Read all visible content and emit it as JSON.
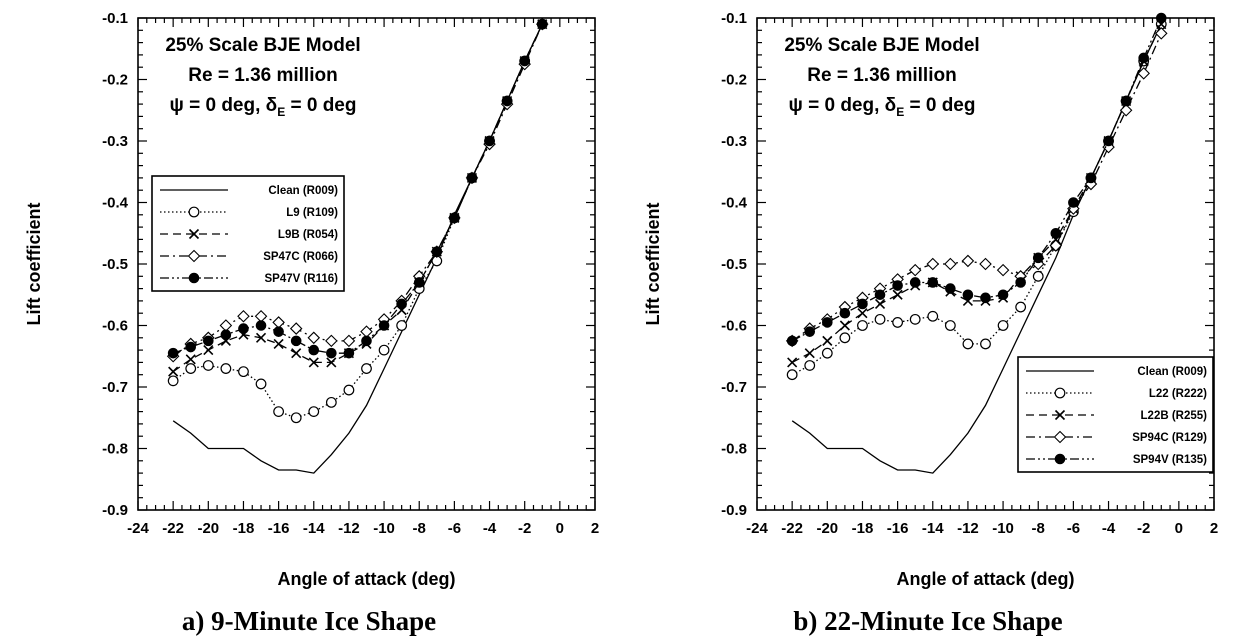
{
  "figure": {
    "panels": [
      {
        "caption": "a)  9-Minute Ice Shape",
        "annotation": [
          "25% Scale BJE Model",
          "Re = 1.36 million",
          "ψ = 0 deg, δE = 0 deg"
        ],
        "legend": {
          "position": "middle-left"
        }
      },
      {
        "caption": "b)  22-Minute Ice Shape",
        "annotation": [
          "25% Scale BJE Model",
          "Re = 1.36 million",
          "ψ = 0 deg, δE = 0 deg"
        ],
        "legend": {
          "position": "bottom-right"
        }
      }
    ]
  },
  "colors": {
    "ink": "#000000",
    "background": "#ffffff"
  },
  "chart_data": [
    {
      "type": "line",
      "title": "",
      "xlabel": "Angle of attack (deg)",
      "ylabel": "Lift coefficient",
      "xlim": [
        -24,
        2
      ],
      "ylim": [
        -0.9,
        -0.1
      ],
      "xticks": [
        -24,
        -22,
        -20,
        -18,
        -16,
        -14,
        -12,
        -10,
        -8,
        -6,
        -4,
        -2,
        0,
        2
      ],
      "yticks": [
        -0.1,
        -0.2,
        -0.3,
        -0.4,
        -0.5,
        -0.6,
        -0.7,
        -0.8,
        -0.9
      ],
      "grid": false,
      "series": [
        {
          "name": "Clean (R009)",
          "style": "solid",
          "marker": "none",
          "x": [
            -22,
            -21,
            -20,
            -19,
            -18,
            -17,
            -16,
            -15,
            -14,
            -13,
            -12,
            -11,
            -10,
            -9,
            -8,
            -7,
            -6,
            -5,
            -4,
            -3,
            -2,
            -1
          ],
          "y": [
            -0.755,
            -0.775,
            -0.8,
            -0.8,
            -0.8,
            -0.82,
            -0.835,
            -0.835,
            -0.84,
            -0.81,
            -0.775,
            -0.73,
            -0.67,
            -0.61,
            -0.55,
            -0.49,
            -0.42,
            -0.36,
            -0.3,
            -0.235,
            -0.17,
            -0.11
          ]
        },
        {
          "name": "L9 (R109)",
          "style": "dotted",
          "marker": "open-circle",
          "x": [
            -22,
            -21,
            -20,
            -19,
            -18,
            -17,
            -16,
            -15,
            -14,
            -13,
            -12,
            -11,
            -10,
            -9,
            -8,
            -7,
            -6,
            -5,
            -4,
            -3,
            -2,
            -1
          ],
          "y": [
            -0.69,
            -0.67,
            -0.665,
            -0.67,
            -0.675,
            -0.695,
            -0.74,
            -0.75,
            -0.74,
            -0.725,
            -0.705,
            -0.67,
            -0.64,
            -0.6,
            -0.54,
            -0.495,
            -0.425,
            -0.36,
            -0.3,
            -0.235,
            -0.17,
            -0.11
          ]
        },
        {
          "name": "L9B (R054)",
          "style": "dashed",
          "marker": "x",
          "x": [
            -22,
            -21,
            -20,
            -19,
            -18,
            -17,
            -16,
            -15,
            -14,
            -13,
            -12,
            -11,
            -10,
            -9,
            -8,
            -7,
            -6,
            -5,
            -4,
            -3,
            -2,
            -1
          ],
          "y": [
            -0.675,
            -0.655,
            -0.64,
            -0.625,
            -0.615,
            -0.62,
            -0.63,
            -0.645,
            -0.66,
            -0.66,
            -0.645,
            -0.63,
            -0.6,
            -0.575,
            -0.53,
            -0.48,
            -0.425,
            -0.36,
            -0.3,
            -0.235,
            -0.17,
            -0.11
          ]
        },
        {
          "name": "SP47C (R066)",
          "style": "dash-dot",
          "marker": "open-diamond",
          "x": [
            -22,
            -21,
            -20,
            -19,
            -18,
            -17,
            -16,
            -15,
            -14,
            -13,
            -12,
            -11,
            -10,
            -9,
            -8,
            -7,
            -6,
            -5,
            -4,
            -3,
            -2,
            -1
          ],
          "y": [
            -0.65,
            -0.63,
            -0.62,
            -0.6,
            -0.585,
            -0.585,
            -0.595,
            -0.605,
            -0.62,
            -0.625,
            -0.625,
            -0.61,
            -0.59,
            -0.56,
            -0.52,
            -0.48,
            -0.425,
            -0.36,
            -0.305,
            -0.24,
            -0.175,
            -0.11
          ]
        },
        {
          "name": "SP47V (R116)",
          "style": "dash-dot-dot",
          "marker": "filled-circle",
          "x": [
            -22,
            -21,
            -20,
            -19,
            -18,
            -17,
            -16,
            -15,
            -14,
            -13,
            -12,
            -11,
            -10,
            -9,
            -8,
            -7,
            -6,
            -5,
            -4,
            -3,
            -2,
            -1
          ],
          "y": [
            -0.645,
            -0.635,
            -0.625,
            -0.615,
            -0.605,
            -0.6,
            -0.61,
            -0.625,
            -0.64,
            -0.645,
            -0.645,
            -0.625,
            -0.6,
            -0.565,
            -0.53,
            -0.48,
            -0.425,
            -0.36,
            -0.3,
            -0.235,
            -0.17,
            -0.11
          ]
        }
      ]
    },
    {
      "type": "line",
      "title": "",
      "xlabel": "Angle of attack (deg)",
      "ylabel": "Lift coefficient",
      "xlim": [
        -24,
        2
      ],
      "ylim": [
        -0.9,
        -0.1
      ],
      "xticks": [
        -24,
        -22,
        -20,
        -18,
        -16,
        -14,
        -12,
        -10,
        -8,
        -6,
        -4,
        -2,
        0,
        2
      ],
      "yticks": [
        -0.1,
        -0.2,
        -0.3,
        -0.4,
        -0.5,
        -0.6,
        -0.7,
        -0.8,
        -0.9
      ],
      "grid": false,
      "series": [
        {
          "name": "Clean (R009)",
          "style": "solid",
          "marker": "none",
          "x": [
            -22,
            -21,
            -20,
            -19,
            -18,
            -17,
            -16,
            -15,
            -14,
            -13,
            -12,
            -11,
            -10,
            -9,
            -8,
            -7,
            -6,
            -5,
            -4,
            -3,
            -2,
            -1
          ],
          "y": [
            -0.755,
            -0.775,
            -0.8,
            -0.8,
            -0.8,
            -0.82,
            -0.835,
            -0.835,
            -0.84,
            -0.81,
            -0.775,
            -0.73,
            -0.67,
            -0.61,
            -0.55,
            -0.49,
            -0.42,
            -0.36,
            -0.3,
            -0.235,
            -0.17,
            -0.11
          ]
        },
        {
          "name": "L22 (R222)",
          "style": "dotted",
          "marker": "open-circle",
          "x": [
            -22,
            -21,
            -20,
            -19,
            -18,
            -17,
            -16,
            -15,
            -14,
            -13,
            -12,
            -11,
            -10,
            -9,
            -8,
            -7,
            -6,
            -5,
            -4,
            -3,
            -2,
            -1
          ],
          "y": [
            -0.68,
            -0.665,
            -0.645,
            -0.62,
            -0.6,
            -0.59,
            -0.595,
            -0.59,
            -0.585,
            -0.6,
            -0.63,
            -0.63,
            -0.6,
            -0.57,
            -0.52,
            -0.47,
            -0.415,
            -0.36,
            -0.3,
            -0.235,
            -0.17,
            -0.11
          ]
        },
        {
          "name": "L22B (R255)",
          "style": "dashed",
          "marker": "x",
          "x": [
            -22,
            -21,
            -20,
            -19,
            -18,
            -17,
            -16,
            -15,
            -14,
            -13,
            -12,
            -11,
            -10,
            -9,
            -8,
            -7,
            -6,
            -5,
            -4,
            -3,
            -2,
            -1
          ],
          "y": [
            -0.66,
            -0.645,
            -0.625,
            -0.6,
            -0.58,
            -0.565,
            -0.55,
            -0.535,
            -0.53,
            -0.545,
            -0.56,
            -0.56,
            -0.555,
            -0.52,
            -0.49,
            -0.46,
            -0.41,
            -0.36,
            -0.3,
            -0.235,
            -0.17,
            -0.11
          ]
        },
        {
          "name": "SP94C (R129)",
          "style": "dash-dot",
          "marker": "open-diamond",
          "x": [
            -22,
            -21,
            -20,
            -19,
            -18,
            -17,
            -16,
            -15,
            -14,
            -13,
            -12,
            -11,
            -10,
            -9,
            -8,
            -7,
            -6,
            -5,
            -4,
            -3,
            -2,
            -1
          ],
          "y": [
            -0.625,
            -0.605,
            -0.59,
            -0.57,
            -0.555,
            -0.54,
            -0.525,
            -0.51,
            -0.5,
            -0.5,
            -0.495,
            -0.5,
            -0.51,
            -0.52,
            -0.5,
            -0.47,
            -0.41,
            -0.37,
            -0.31,
            -0.25,
            -0.19,
            -0.125
          ]
        },
        {
          "name": "SP94V (R135)",
          "style": "dash-dot-dot",
          "marker": "filled-circle",
          "x": [
            -22,
            -21,
            -20,
            -19,
            -18,
            -17,
            -16,
            -15,
            -14,
            -13,
            -12,
            -11,
            -10,
            -9,
            -8,
            -7,
            -6,
            -5,
            -4,
            -3,
            -2,
            -1
          ],
          "y": [
            -0.625,
            -0.61,
            -0.595,
            -0.58,
            -0.565,
            -0.55,
            -0.535,
            -0.53,
            -0.53,
            -0.54,
            -0.55,
            -0.555,
            -0.55,
            -0.53,
            -0.49,
            -0.45,
            -0.4,
            -0.36,
            -0.3,
            -0.235,
            -0.165,
            -0.1
          ]
        }
      ]
    }
  ]
}
